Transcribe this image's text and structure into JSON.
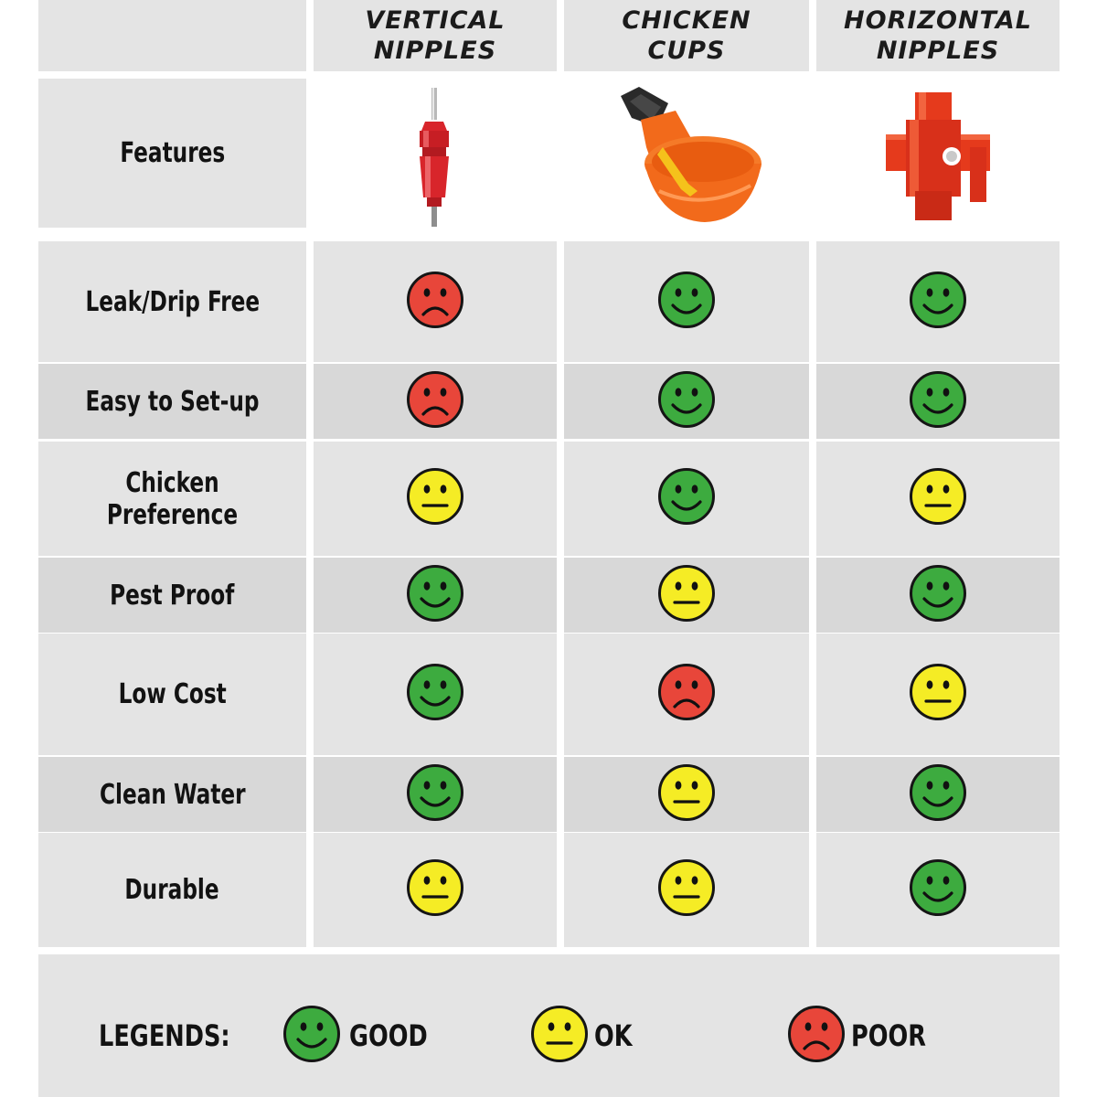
{
  "columns": [
    {
      "label_line1": "VERTICAL",
      "label_line2": "NIPPLES"
    },
    {
      "label_line1": "CHICKEN",
      "label_line2": "CUPS"
    },
    {
      "label_line1": "HORIZONTAL",
      "label_line2": "NIPPLES"
    }
  ],
  "features_label": "Features",
  "rows": [
    {
      "label": "Leak/Drip Free",
      "ratings": [
        "poor",
        "good",
        "good"
      ]
    },
    {
      "label": "Easy to Set-up",
      "ratings": [
        "poor",
        "good",
        "good"
      ]
    },
    {
      "label": "Chicken Preference",
      "ratings": [
        "ok",
        "good",
        "ok"
      ]
    },
    {
      "label": "Pest Proof",
      "ratings": [
        "good",
        "ok",
        "good"
      ]
    },
    {
      "label": "Low Cost",
      "ratings": [
        "good",
        "poor",
        "ok"
      ]
    },
    {
      "label": "Clean Water",
      "ratings": [
        "good",
        "ok",
        "good"
      ]
    },
    {
      "label": "Durable",
      "ratings": [
        "ok",
        "ok",
        "good"
      ]
    }
  ],
  "legend": {
    "title": "LEGENDS:",
    "good": "GOOD",
    "ok": "OK",
    "poor": "POOR"
  },
  "colors": {
    "good": "#3dab3f",
    "ok": "#f5ec25",
    "poor": "#e8463a",
    "light_gray": "#e4e4e4",
    "dark_gray": "#d8d8d8",
    "vertical_nipple": "#d8252b",
    "chicken_cup": "#f26a1b",
    "horizontal_nipple": "#e53a1c"
  },
  "icons": {
    "good": "happy-face-icon",
    "ok": "neutral-face-icon",
    "poor": "sad-face-icon"
  }
}
